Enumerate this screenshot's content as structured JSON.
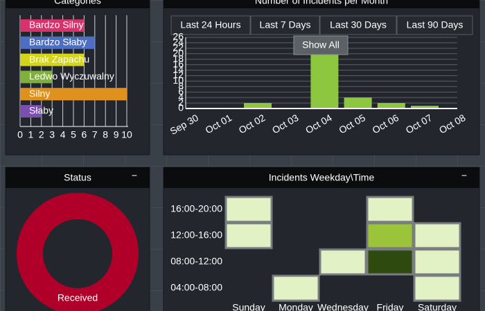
{
  "chart_data": [
    {
      "type": "hbar",
      "title": "Categories",
      "categories": [
        "Bardzo Silny",
        "Bardzo Słaby",
        "Brak Zapachu",
        "Ledwo Wyczuwalny",
        "Silny",
        "Słaby"
      ],
      "values": [
        6,
        7,
        6,
        3,
        10,
        2
      ],
      "colors": [
        "#d6336c",
        "#4c6fc4",
        "#d4d41c",
        "#7fb03c",
        "#e0901c",
        "#7a4fb0"
      ],
      "xlim": [
        0,
        10
      ],
      "xticks": [
        0,
        1,
        2,
        3,
        4,
        5,
        6,
        7,
        8,
        9,
        10
      ],
      "grid": true
    },
    {
      "type": "bar",
      "title": "Number of Incidents per Month",
      "range_buttons": [
        "Last 24 Hours",
        "Last 7 Days",
        "Last 30 Days",
        "Last 90 Days"
      ],
      "tooltip_button": "Show All",
      "categories": [
        "Sep 30",
        "Oct 01",
        "Oct 02",
        "Oct 03",
        "Oct 04",
        "Oct 05",
        "Oct 06",
        "Oct 07",
        "Oct 08"
      ],
      "values": [
        0,
        0,
        2,
        0,
        20,
        4,
        2,
        1,
        0
      ],
      "color": "#8dc63f",
      "ylim": [
        0,
        26
      ],
      "yticks": [
        0,
        2,
        4,
        6,
        8,
        10,
        12,
        14,
        16,
        18,
        20,
        22,
        24,
        26
      ],
      "grid": true
    },
    {
      "type": "pie",
      "title": "Status",
      "collapse_label": "−",
      "categories": [
        "Received"
      ],
      "values": [
        100
      ],
      "colors": [
        "#b0002a"
      ]
    },
    {
      "type": "heatmap",
      "title": "Incidents Weekday\\Time",
      "collapse_label": "−",
      "categories": [
        "Sunday",
        "Monday",
        "Wednesday",
        "Friday",
        "Saturday"
      ],
      "rows": [
        "16:00-20:00",
        "12:00-16:00",
        "08:00-12:00",
        "04:00-08:00"
      ],
      "values": [
        [
          1,
          null,
          null,
          1,
          null
        ],
        [
          1,
          null,
          null,
          2,
          1
        ],
        [
          null,
          null,
          1,
          3,
          1
        ],
        [
          null,
          1,
          null,
          null,
          1
        ]
      ],
      "color_scale": [
        "#e2f2c4",
        "#9cc43a",
        "#2e4a0f"
      ]
    }
  ]
}
